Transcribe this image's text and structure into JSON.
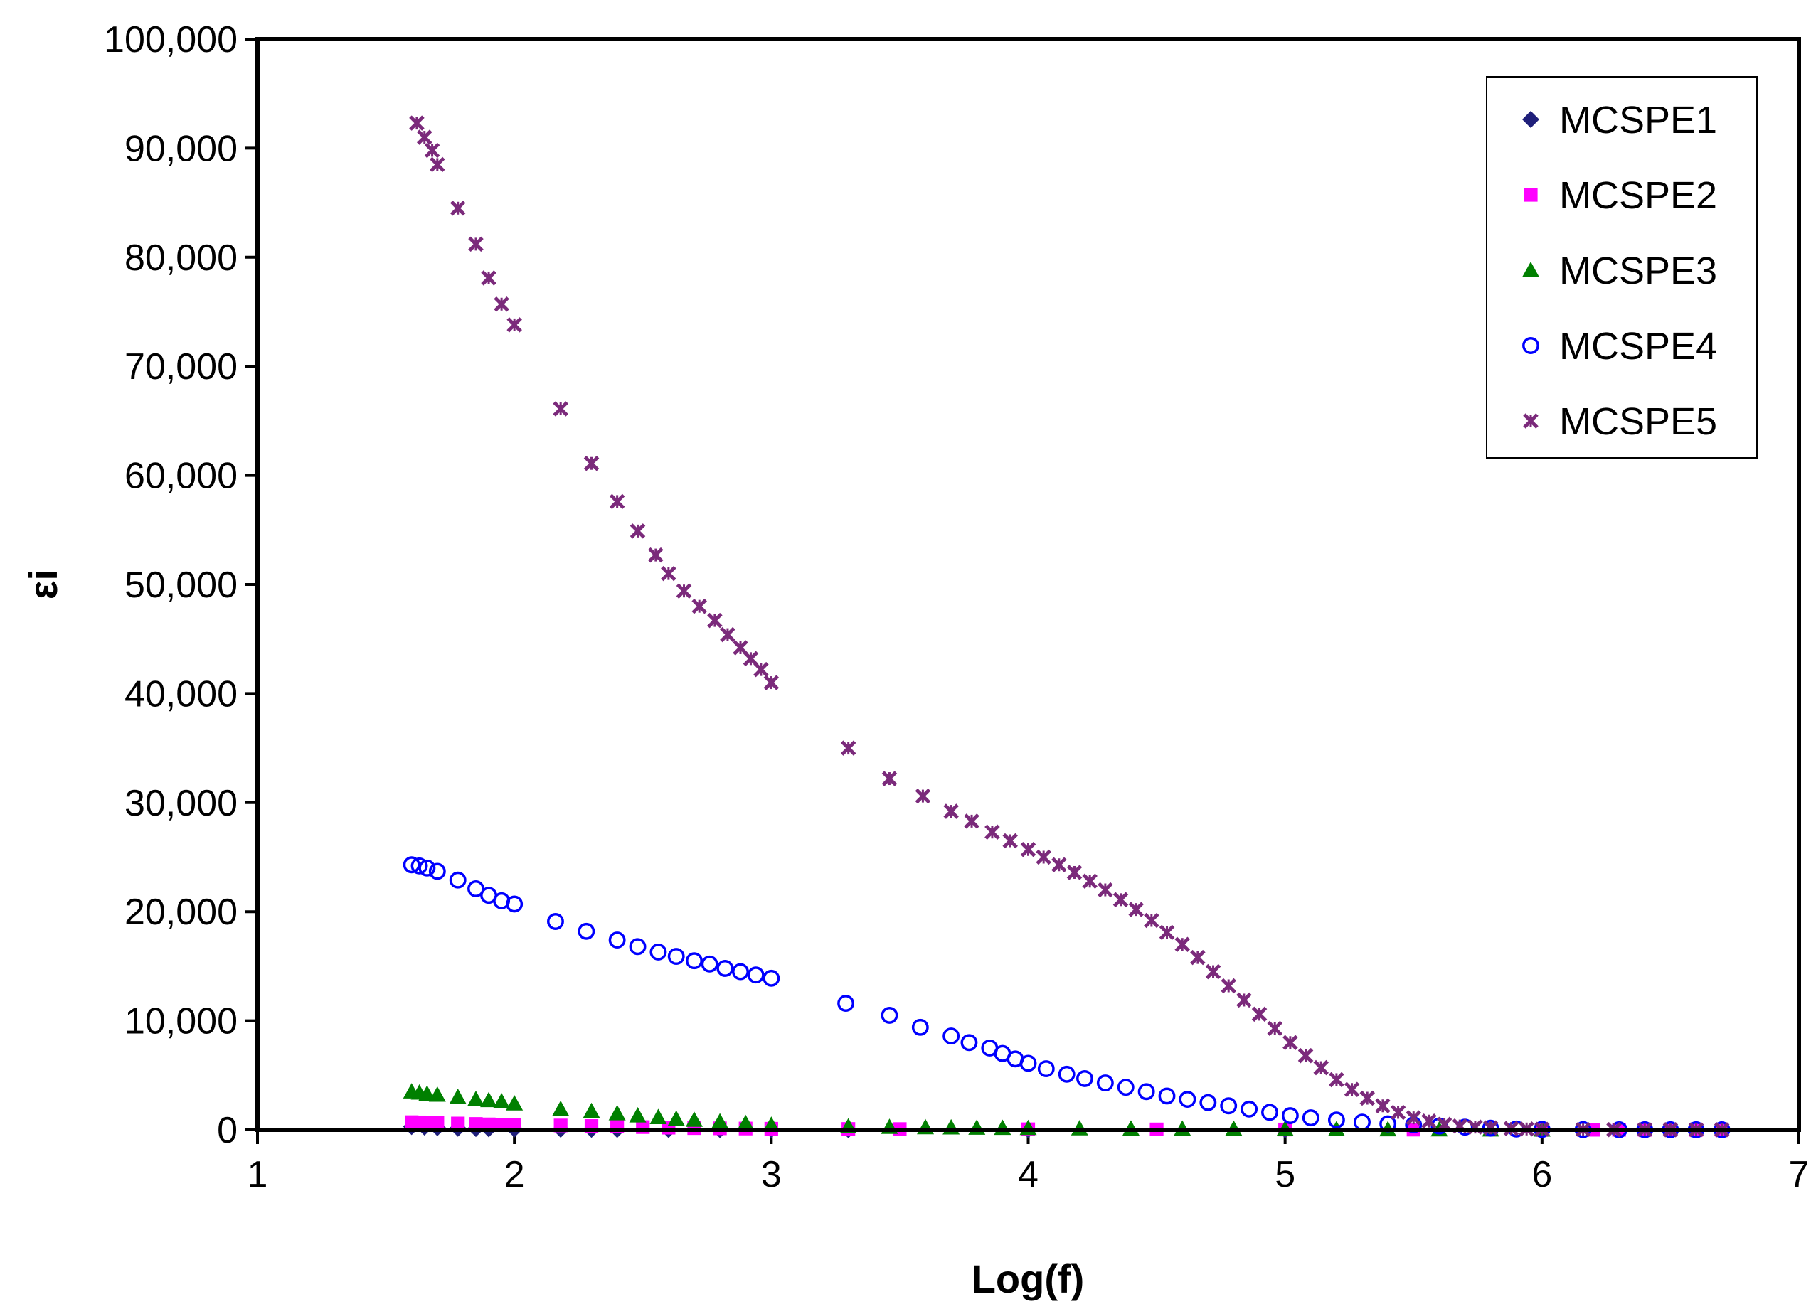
{
  "chart_data": {
    "type": "scatter",
    "title": "",
    "xlabel": "Log(f)",
    "ylabel": "εi",
    "xlim": [
      1,
      7
    ],
    "ylim": [
      0,
      100000
    ],
    "x_ticks": [
      "1",
      "2",
      "3",
      "4",
      "5",
      "6",
      "7"
    ],
    "y_ticks": [
      "0",
      "10,000",
      "20,000",
      "30,000",
      "40,000",
      "50,000",
      "60,000",
      "70,000",
      "80,000",
      "90,000",
      "100,000"
    ],
    "grid": false,
    "legend_position": "top-right",
    "series": [
      {
        "name": "MCSPE1",
        "marker": "diamond",
        "color": "#1f1f7a",
        "points": [
          [
            1.6,
            300
          ],
          [
            1.65,
            250
          ],
          [
            1.7,
            200
          ],
          [
            1.78,
            150
          ],
          [
            1.85,
            120
          ],
          [
            1.9,
            100
          ],
          [
            2.0,
            80
          ],
          [
            2.18,
            60
          ],
          [
            2.3,
            50
          ],
          [
            2.4,
            40
          ],
          [
            2.6,
            30
          ],
          [
            2.8,
            25
          ],
          [
            3.0,
            20
          ],
          [
            3.3,
            15
          ],
          [
            4.0,
            10
          ],
          [
            5.0,
            5
          ],
          [
            6.0,
            2
          ],
          [
            6.7,
            1
          ]
        ]
      },
      {
        "name": "MCSPE2",
        "marker": "square",
        "color": "#ff00ff",
        "points": [
          [
            1.6,
            700
          ],
          [
            1.63,
            680
          ],
          [
            1.66,
            650
          ],
          [
            1.7,
            620
          ],
          [
            1.78,
            580
          ],
          [
            1.85,
            540
          ],
          [
            1.9,
            500
          ],
          [
            1.95,
            480
          ],
          [
            2.0,
            450
          ],
          [
            2.18,
            400
          ],
          [
            2.3,
            350
          ],
          [
            2.4,
            300
          ],
          [
            2.5,
            250
          ],
          [
            2.6,
            200
          ],
          [
            2.7,
            160
          ],
          [
            2.8,
            140
          ],
          [
            2.9,
            120
          ],
          [
            3.0,
            100
          ],
          [
            3.3,
            80
          ],
          [
            3.5,
            70
          ],
          [
            4.0,
            50
          ],
          [
            4.5,
            40
          ],
          [
            5.0,
            30
          ],
          [
            5.5,
            20
          ],
          [
            6.0,
            10
          ],
          [
            6.2,
            8
          ],
          [
            6.3,
            7
          ],
          [
            6.4,
            6
          ],
          [
            6.5,
            5
          ],
          [
            6.6,
            4
          ],
          [
            6.7,
            3
          ]
        ]
      },
      {
        "name": "MCSPE3",
        "marker": "triangle",
        "color": "#008000",
        "points": [
          [
            1.6,
            3500
          ],
          [
            1.63,
            3400
          ],
          [
            1.66,
            3300
          ],
          [
            1.7,
            3200
          ],
          [
            1.78,
            3000
          ],
          [
            1.85,
            2800
          ],
          [
            1.9,
            2700
          ],
          [
            1.95,
            2600
          ],
          [
            2.0,
            2400
          ],
          [
            2.18,
            1900
          ],
          [
            2.3,
            1700
          ],
          [
            2.4,
            1500
          ],
          [
            2.48,
            1300
          ],
          [
            2.56,
            1150
          ],
          [
            2.63,
            1000
          ],
          [
            2.7,
            900
          ],
          [
            2.8,
            750
          ],
          [
            2.9,
            600
          ],
          [
            3.0,
            450
          ],
          [
            3.3,
            300
          ],
          [
            3.46,
            250
          ],
          [
            3.6,
            220
          ],
          [
            3.7,
            200
          ],
          [
            3.8,
            180
          ],
          [
            3.9,
            160
          ],
          [
            4.0,
            150
          ],
          [
            4.2,
            120
          ],
          [
            4.4,
            100
          ],
          [
            4.6,
            90
          ],
          [
            4.8,
            80
          ],
          [
            5.0,
            60
          ],
          [
            5.2,
            40
          ],
          [
            5.4,
            30
          ],
          [
            5.6,
            20
          ],
          [
            5.8,
            15
          ],
          [
            6.0,
            10
          ]
        ]
      },
      {
        "name": "MCSPE4",
        "marker": "circle",
        "color": "#0000ff",
        "points": [
          [
            1.6,
            24300
          ],
          [
            1.63,
            24200
          ],
          [
            1.66,
            24000
          ],
          [
            1.7,
            23700
          ],
          [
            1.78,
            22900
          ],
          [
            1.85,
            22100
          ],
          [
            1.9,
            21500
          ],
          [
            1.95,
            21000
          ],
          [
            2.0,
            20700
          ],
          [
            2.16,
            19100
          ],
          [
            2.28,
            18200
          ],
          [
            2.4,
            17400
          ],
          [
            2.48,
            16800
          ],
          [
            2.56,
            16300
          ],
          [
            2.63,
            15900
          ],
          [
            2.7,
            15500
          ],
          [
            2.76,
            15200
          ],
          [
            2.82,
            14800
          ],
          [
            2.88,
            14500
          ],
          [
            2.94,
            14200
          ],
          [
            3.0,
            13900
          ],
          [
            3.29,
            11600
          ],
          [
            3.46,
            10500
          ],
          [
            3.58,
            9400
          ],
          [
            3.7,
            8600
          ],
          [
            3.77,
            8000
          ],
          [
            3.85,
            7500
          ],
          [
            3.9,
            7000
          ],
          [
            3.95,
            6500
          ],
          [
            4.0,
            6100
          ],
          [
            4.07,
            5600
          ],
          [
            4.15,
            5100
          ],
          [
            4.22,
            4700
          ],
          [
            4.3,
            4300
          ],
          [
            4.38,
            3900
          ],
          [
            4.46,
            3500
          ],
          [
            4.54,
            3100
          ],
          [
            4.62,
            2800
          ],
          [
            4.7,
            2500
          ],
          [
            4.78,
            2200
          ],
          [
            4.86,
            1900
          ],
          [
            4.94,
            1600
          ],
          [
            5.02,
            1300
          ],
          [
            5.1,
            1100
          ],
          [
            5.2,
            900
          ],
          [
            5.3,
            700
          ],
          [
            5.4,
            550
          ],
          [
            5.5,
            450
          ],
          [
            5.6,
            350
          ],
          [
            5.7,
            250
          ],
          [
            5.8,
            150
          ],
          [
            5.9,
            80
          ],
          [
            6.0,
            40
          ],
          [
            6.16,
            20
          ],
          [
            6.3,
            15
          ],
          [
            6.4,
            12
          ],
          [
            6.5,
            10
          ],
          [
            6.6,
            8
          ],
          [
            6.7,
            5
          ]
        ]
      },
      {
        "name": "MCSPE5",
        "marker": "x",
        "color": "#7b2a7b",
        "points": [
          [
            1.62,
            92300
          ],
          [
            1.65,
            91000
          ],
          [
            1.68,
            89800
          ],
          [
            1.7,
            88500
          ],
          [
            1.78,
            84500
          ],
          [
            1.85,
            81200
          ],
          [
            1.9,
            78100
          ],
          [
            1.95,
            75700
          ],
          [
            2.0,
            73800
          ],
          [
            2.18,
            66100
          ],
          [
            2.3,
            61100
          ],
          [
            2.4,
            57600
          ],
          [
            2.48,
            54900
          ],
          [
            2.55,
            52700
          ],
          [
            2.6,
            51000
          ],
          [
            2.66,
            49400
          ],
          [
            2.72,
            48000
          ],
          [
            2.78,
            46700
          ],
          [
            2.83,
            45400
          ],
          [
            2.88,
            44200
          ],
          [
            2.92,
            43200
          ],
          [
            2.96,
            42200
          ],
          [
            3.0,
            41000
          ],
          [
            3.3,
            35000
          ],
          [
            3.46,
            32200
          ],
          [
            3.59,
            30600
          ],
          [
            3.7,
            29200
          ],
          [
            3.78,
            28300
          ],
          [
            3.86,
            27300
          ],
          [
            3.93,
            26500
          ],
          [
            4.0,
            25700
          ],
          [
            4.06,
            25000
          ],
          [
            4.12,
            24300
          ],
          [
            4.18,
            23600
          ],
          [
            4.24,
            22800
          ],
          [
            4.3,
            22000
          ],
          [
            4.36,
            21100
          ],
          [
            4.42,
            20200
          ],
          [
            4.48,
            19200
          ],
          [
            4.54,
            18100
          ],
          [
            4.6,
            17000
          ],
          [
            4.66,
            15800
          ],
          [
            4.72,
            14500
          ],
          [
            4.78,
            13200
          ],
          [
            4.84,
            11900
          ],
          [
            4.9,
            10600
          ],
          [
            4.96,
            9300
          ],
          [
            5.02,
            8000
          ],
          [
            5.08,
            6800
          ],
          [
            5.14,
            5700
          ],
          [
            5.2,
            4600
          ],
          [
            5.26,
            3700
          ],
          [
            5.32,
            2900
          ],
          [
            5.38,
            2200
          ],
          [
            5.44,
            1600
          ],
          [
            5.5,
            1100
          ],
          [
            5.56,
            800
          ],
          [
            5.62,
            500
          ],
          [
            5.68,
            350
          ],
          [
            5.74,
            250
          ],
          [
            5.8,
            180
          ],
          [
            5.88,
            120
          ],
          [
            5.94,
            80
          ],
          [
            6.0,
            50
          ],
          [
            6.16,
            30
          ],
          [
            6.28,
            20
          ],
          [
            6.4,
            15
          ],
          [
            6.5,
            12
          ],
          [
            6.6,
            10
          ],
          [
            6.7,
            8
          ]
        ]
      }
    ]
  }
}
